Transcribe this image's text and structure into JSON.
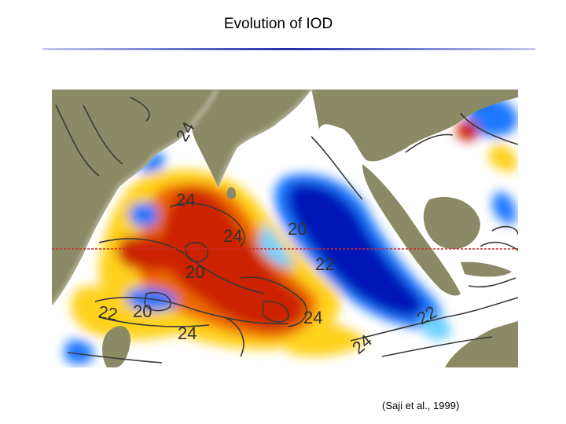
{
  "slide": {
    "title": "Evolution of IOD",
    "citation": "(Saji et al., 1999)"
  },
  "map": {
    "contour_labels": [
      "24",
      "24",
      "24",
      "20",
      "20",
      "22",
      "20",
      "24",
      "24",
      "22",
      "22",
      "24"
    ],
    "colors": {
      "land": "#8b8a66",
      "warm_strong": "#cc2200",
      "warm_mid": "#ee6a00",
      "warm_light": "#ffd21a",
      "cool_strong": "#0016b8",
      "cool_mid": "#1f78ff",
      "cool_light": "#6fd2ff",
      "equator_line": "#cc2a2a"
    }
  },
  "colors": {
    "title_rule_center": "#1f2fa8",
    "title_rule_edge": "#c4c8ee"
  }
}
